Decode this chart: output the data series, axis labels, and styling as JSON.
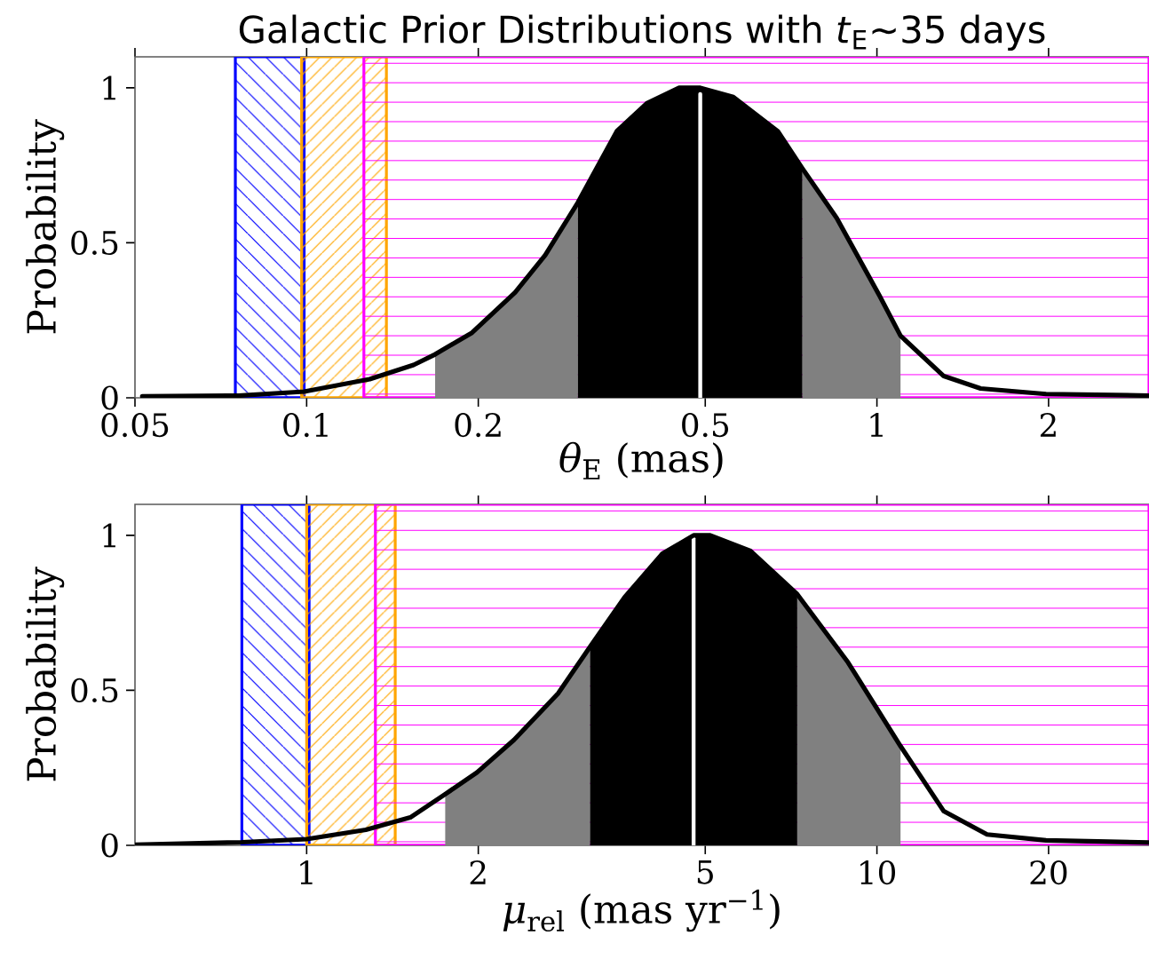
{
  "chart_data": [
    {
      "type": "line",
      "title": "Galactic Prior Distributions with *t*$_{E}$∼35 days",
      "xlabel": "*θ*$_{E}$ (mas)",
      "ylabel": "Probability",
      "log": "x",
      "xlim": [
        0.05,
        3
      ],
      "xticks": [
        0.05,
        0.1,
        0.2,
        0.5,
        1,
        2
      ],
      "ylim": [
        0,
        1.1
      ],
      "yticks": [
        0,
        0.5,
        1
      ],
      "series": [
        {
          "type": "area",
          "color": "#808080",
          "x": [
            0.168,
            0.195,
            0.232,
            0.262,
            0.299
          ],
          "values": [
            0.14,
            0.21,
            0.34,
            0.46,
            0.63
          ]
        },
        {
          "type": "area",
          "color": "#808080",
          "x": [
            0.74,
            0.85,
            1.01,
            1.1
          ],
          "values": [
            0.74,
            0.58,
            0.33,
            0.2
          ]
        },
        {
          "type": "area",
          "color": "#000000",
          "x": [
            0.299,
            0.35,
            0.395,
            0.45,
            0.49,
            0.56,
            0.67,
            0.74
          ],
          "values": [
            0.63,
            0.86,
            0.95,
            1.0,
            1.0,
            0.97,
            0.86,
            0.74
          ]
        },
        {
          "type": "line",
          "color": "#ffffff",
          "x": [
            0.49,
            0.49
          ],
          "values": [
            0,
            0.98
          ]
        },
        {
          "type": "line",
          "color": "#000000",
          "x": [
            0.0515,
            0.076,
            0.099,
            0.129,
            0.154,
            0.168,
            0.195,
            0.232,
            0.262,
            0.299,
            0.35,
            0.395,
            0.45,
            0.49,
            0.56,
            0.67,
            0.74,
            0.85,
            1.01,
            1.1,
            1.31,
            1.52,
            1.98,
            3.0
          ],
          "values": [
            0.005,
            0.007,
            0.02,
            0.06,
            0.106,
            0.14,
            0.21,
            0.34,
            0.46,
            0.63,
            0.86,
            0.95,
            1.0,
            1.0,
            0.97,
            0.86,
            0.74,
            0.58,
            0.33,
            0.2,
            0.07,
            0.03,
            0.012,
            0.007
          ]
        }
      ],
      "bands": [
        {
          "axis": "x",
          "from": 0.075,
          "to": 0.099,
          "color": "#0000ff"
        },
        {
          "axis": "x",
          "from": 0.098,
          "to": 0.138,
          "color": "#ffa500"
        },
        {
          "axis": "x",
          "from": 0.126,
          "to": 3,
          "color": "#ff00ff"
        }
      ]
    },
    {
      "type": "line",
      "xlabel": "*μ*$_{rel}$ (mas yr$^{−1}$)",
      "ylabel": "Probability",
      "log": "x",
      "xlim": [
        0.5,
        30
      ],
      "xticks": [
        1,
        2,
        5,
        10,
        20
      ],
      "ylim": [
        0,
        1.1
      ],
      "yticks": [
        0,
        0.5,
        1
      ],
      "series": [
        {
          "type": "area",
          "color": "#808080",
          "x": [
            1.75,
            1.99,
            2.31,
            2.76,
            3.14
          ],
          "values": [
            0.165,
            0.235,
            0.34,
            0.49,
            0.64
          ]
        },
        {
          "type": "area",
          "color": "#808080",
          "x": [
            7.25,
            8.9,
            11.0
          ],
          "values": [
            0.81,
            0.59,
            0.32
          ]
        },
        {
          "type": "area",
          "color": "#000000",
          "x": [
            3.14,
            3.61,
            4.2,
            4.77,
            5.1,
            6.0,
            7.25
          ],
          "values": [
            0.64,
            0.8,
            0.94,
            1.0,
            1.0,
            0.95,
            0.81
          ]
        },
        {
          "type": "line",
          "color": "#ffffff",
          "x": [
            4.77,
            4.77
          ],
          "values": [
            0,
            0.99
          ]
        },
        {
          "type": "line",
          "color": "#000000",
          "x": [
            0.5,
            0.77,
            1,
            1.27,
            1.52,
            1.75,
            1.99,
            2.31,
            2.76,
            3.14,
            3.61,
            4.2,
            4.77,
            5.1,
            6.0,
            7.25,
            8.9,
            11.0,
            13.1,
            15.6,
            19.8,
            30
          ],
          "values": [
            0.002,
            0.01,
            0.02,
            0.05,
            0.09,
            0.165,
            0.235,
            0.34,
            0.49,
            0.64,
            0.8,
            0.94,
            1.0,
            1.0,
            0.95,
            0.81,
            0.59,
            0.32,
            0.11,
            0.035,
            0.016,
            0.009
          ]
        }
      ],
      "bands": [
        {
          "axis": "x",
          "from": 0.77,
          "to": 1.01,
          "color": "#0000ff"
        },
        {
          "axis": "x",
          "from": 1.0,
          "to": 1.43,
          "color": "#ffa500"
        },
        {
          "axis": "x",
          "from": 1.32,
          "to": 30,
          "color": "#ff00ff"
        }
      ]
    }
  ]
}
